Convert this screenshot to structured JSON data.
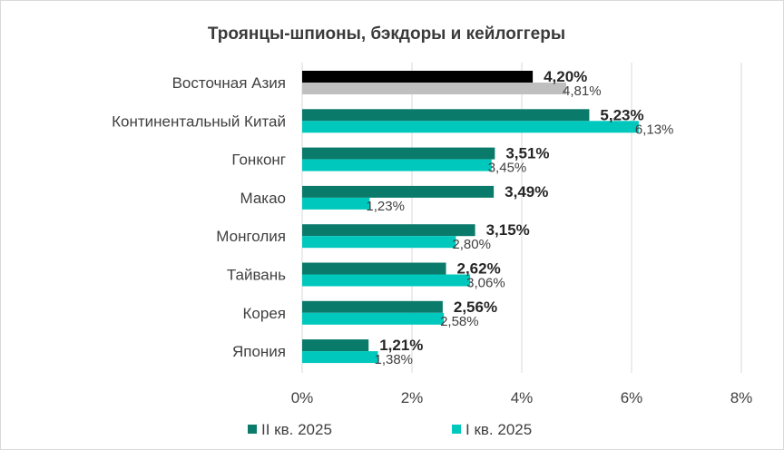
{
  "colors": {
    "series_q2": "#0a7a6a",
    "series_q1": "#00c8bd",
    "highlight_q2": "#000000",
    "highlight_q1": "#bfbfbf",
    "grid": "#d9d9d9"
  },
  "chart_data": {
    "type": "bar",
    "orientation": "horizontal",
    "title": "Троянцы-шпионы, бэкдоры и кейлоггеры",
    "categories": [
      "Восточная Азия",
      "Континентальный Китай",
      "Гонконг",
      "Макао",
      "Монголия",
      "Тайвань",
      "Корея",
      "Япония"
    ],
    "series": [
      {
        "name": "II кв. 2025",
        "values": [
          4.2,
          5.23,
          3.51,
          3.49,
          3.15,
          2.62,
          2.56,
          1.21
        ],
        "labels": [
          "4,20%",
          "5,23%",
          "3,51%",
          "3,49%",
          "3,15%",
          "2,62%",
          "2,56%",
          "1,21%"
        ]
      },
      {
        "name": "I кв. 2025",
        "values": [
          4.81,
          6.13,
          3.45,
          1.23,
          2.8,
          3.06,
          2.58,
          1.38
        ],
        "labels": [
          "4,81%",
          "6,13%",
          "3,45%",
          "1,23%",
          "2,80%",
          "3,06%",
          "2,58%",
          "1,38%"
        ]
      }
    ],
    "xlim": [
      0,
      8
    ],
    "xticks": [
      0,
      2,
      4,
      6,
      8
    ],
    "xtick_labels": [
      "0%",
      "2%",
      "4%",
      "6%",
      "8%"
    ],
    "grid": true,
    "legend_position": "bottom",
    "highlighted_category": "Восточная Азия"
  }
}
